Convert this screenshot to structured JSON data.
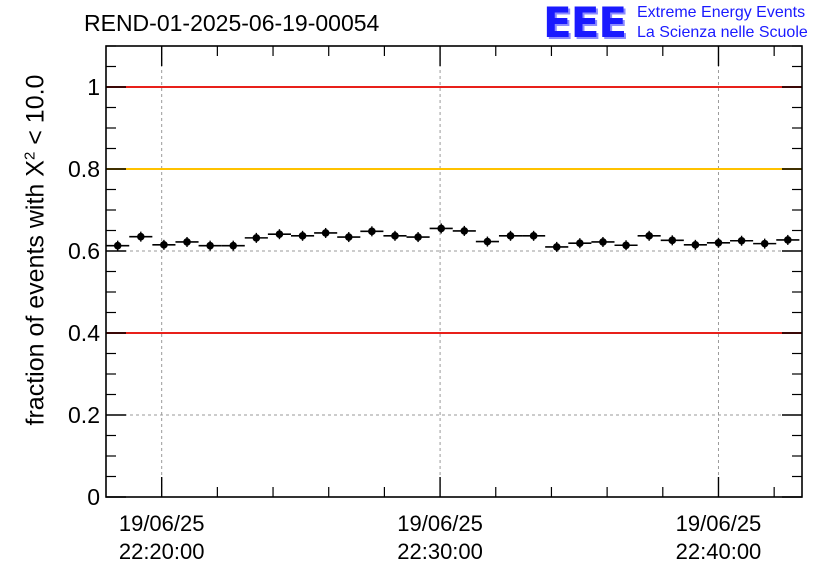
{
  "header": {
    "run_title": "REND-01-2025-06-19-00054",
    "logo_mark": "EEE",
    "logo_line1": "Extreme Energy Events",
    "logo_line2": "La Scienza nelle Scuole"
  },
  "chart_data": {
    "type": "scatter",
    "title": "REND-01-2025-06-19-00054",
    "xlabel": "",
    "ylabel_prefix": "fraction of events with ",
    "ylabel_symbol": "X",
    "ylabel_sup": "2",
    "ylabel_suffix": " < 10.0",
    "ylim": [
      0,
      1.1
    ],
    "xlim_minutes": [
      -2,
      23
    ],
    "grid": true,
    "yticks": [
      "0",
      "0.2",
      "0.4",
      "0.6",
      "0.8",
      "1"
    ],
    "xticks": [
      {
        "minute": 0,
        "date": "19/06/25",
        "time": "22:20:00"
      },
      {
        "minute": 10,
        "date": "19/06/25",
        "time": "22:30:00"
      },
      {
        "minute": 20,
        "date": "19/06/25",
        "time": "22:40:00"
      }
    ],
    "reference_lines": [
      {
        "value": 1.0,
        "color": "#e8201a"
      },
      {
        "value": 0.8,
        "color": "#ffc200"
      },
      {
        "value": 0.4,
        "color": "#e8201a"
      }
    ],
    "series": [
      {
        "name": "chi2 fraction",
        "bin_width_minutes": 0.83,
        "x": [
          -1.58,
          -0.75,
          0.08,
          0.91,
          1.74,
          2.57,
          3.4,
          4.23,
          5.06,
          5.89,
          6.72,
          7.55,
          8.38,
          9.21,
          10.04,
          10.87,
          11.7,
          12.53,
          13.36,
          14.19,
          15.02,
          15.85,
          16.68,
          17.51,
          18.34,
          19.17,
          20.0,
          20.83,
          21.66,
          22.49
        ],
        "y": [
          0.613,
          0.635,
          0.615,
          0.622,
          0.613,
          0.613,
          0.632,
          0.641,
          0.637,
          0.644,
          0.634,
          0.648,
          0.637,
          0.634,
          0.655,
          0.649,
          0.623,
          0.637,
          0.637,
          0.61,
          0.619,
          0.622,
          0.614,
          0.637,
          0.626,
          0.615,
          0.62,
          0.625,
          0.618,
          0.627
        ]
      }
    ]
  }
}
